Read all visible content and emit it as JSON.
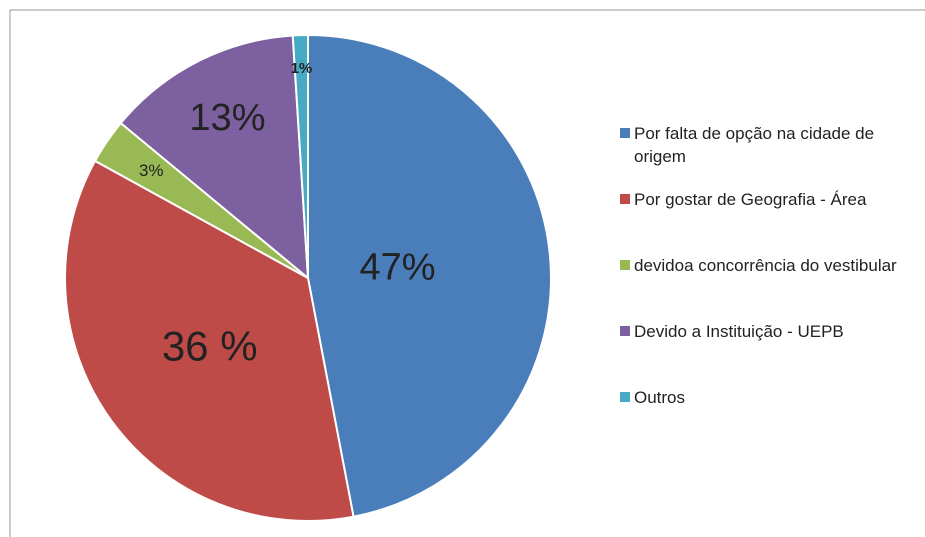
{
  "chart_data": {
    "type": "pie",
    "categories": [
      "Por falta de opção na cidade de origem",
      "Por gostar de Geografia - Área",
      "devidoa concorrência do vestibular",
      "Devido a Instituição - UEPB",
      "Outros"
    ],
    "values": [
      47,
      36,
      3,
      13,
      1
    ],
    "value_labels": [
      "47%",
      "36 %",
      "3%",
      "13%",
      "1%"
    ],
    "colors": [
      "#4a7ebb",
      "#be4b48",
      "#98b954",
      "#7d60a0",
      "#46aac5"
    ],
    "legend": "right"
  }
}
